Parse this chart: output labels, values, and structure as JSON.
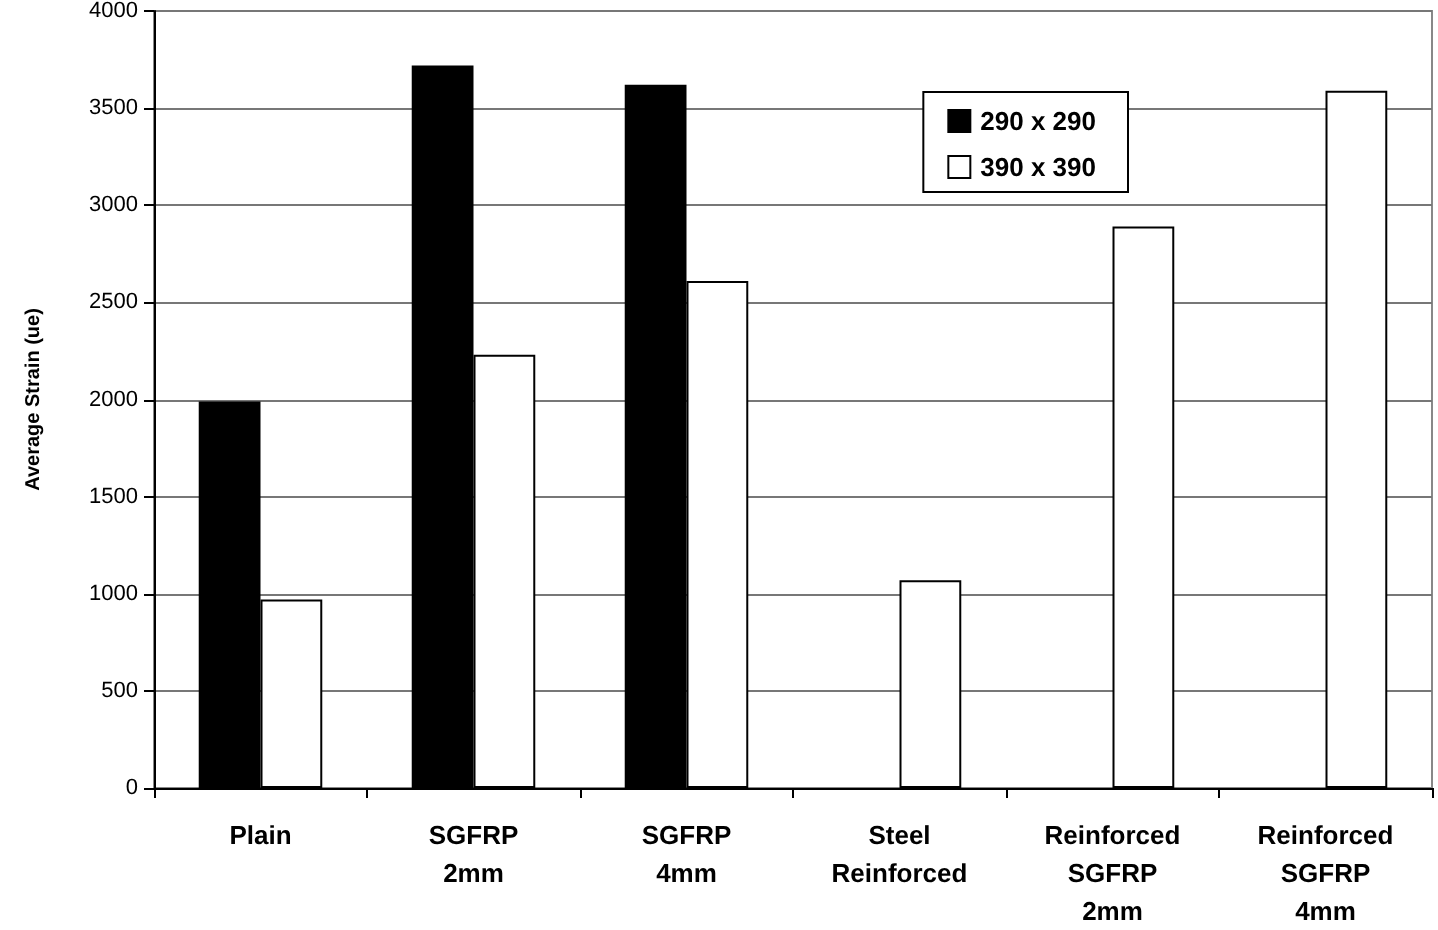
{
  "chart_data": {
    "type": "bar",
    "ylabel": "Average Strain (ue)",
    "categories": [
      "Plain",
      "SGFRP\n2mm",
      "SGFRP\n4mm",
      "Steel\nReinforced",
      "Reinforced\nSGFRP\n2mm",
      "Reinforced\nSGFRP\n4mm"
    ],
    "series": [
      {
        "name": "290 x 290",
        "color": "#000000",
        "values": [
          1990,
          3720,
          3620,
          null,
          null,
          null
        ]
      },
      {
        "name": "390 x 390",
        "color": "#ffffff",
        "values": [
          970,
          2230,
          2610,
          1070,
          2890,
          3590
        ]
      }
    ],
    "ylim": [
      0,
      4000
    ],
    "yticks": [
      0,
      500,
      1000,
      1500,
      2000,
      2500,
      3000,
      3500,
      4000
    ],
    "grid": "y",
    "legend": "top right"
  }
}
